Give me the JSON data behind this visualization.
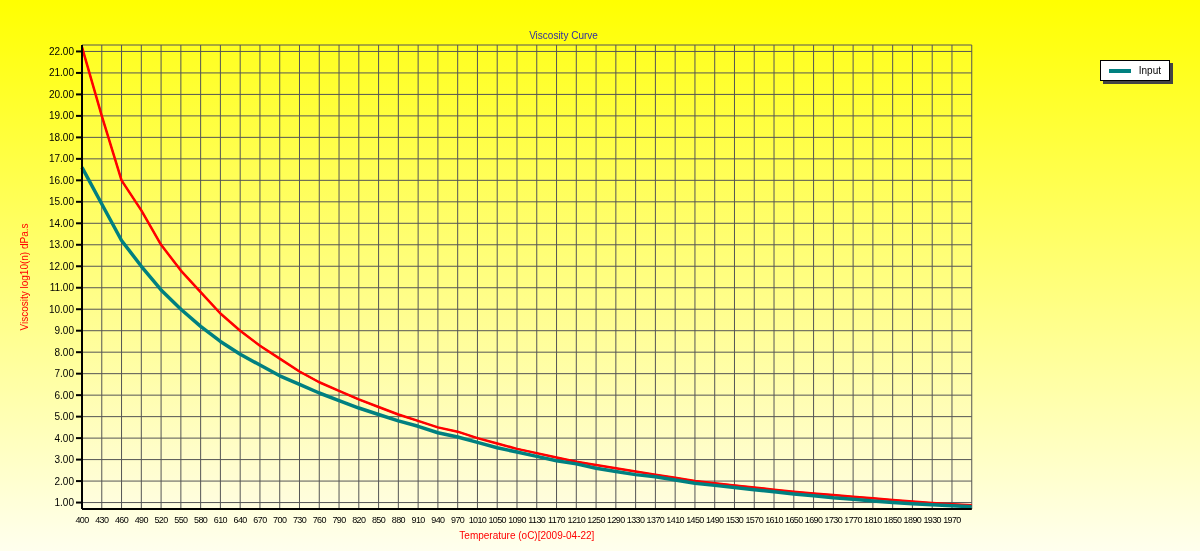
{
  "chart_data": {
    "type": "line",
    "title": "Viscosity Curve",
    "xlabel": "Temperature (oC)[2009-04-22]",
    "ylabel": "Viscosity log10(n) dPa.s",
    "categories": [
      "400",
      "430",
      "460",
      "490",
      "520",
      "550",
      "580",
      "610",
      "640",
      "670",
      "700",
      "730",
      "760",
      "790",
      "820",
      "850",
      "880",
      "910",
      "940",
      "970",
      "1010",
      "1050",
      "1090",
      "1130",
      "1170",
      "1210",
      "1250",
      "1290",
      "1330",
      "1370",
      "1410",
      "1450",
      "1490",
      "1530",
      "1570",
      "1610",
      "1650",
      "1690",
      "1730",
      "1770",
      "1810",
      "1850",
      "1890",
      "1930",
      "1970",
      null
    ],
    "ylim": [
      0.7,
      22.3
    ],
    "yticks": [
      {
        "value": 1,
        "label": "1.00"
      },
      {
        "value": 2,
        "label": "2.00"
      },
      {
        "value": 3,
        "label": "3.00"
      },
      {
        "value": 4,
        "label": "4.00"
      },
      {
        "value": 5,
        "label": "5.00"
      },
      {
        "value": 6,
        "label": "6.00"
      },
      {
        "value": 7,
        "label": "7.00"
      },
      {
        "value": 8,
        "label": "8.00"
      },
      {
        "value": 9,
        "label": "9.00"
      },
      {
        "value": 10,
        "label": "10.00"
      },
      {
        "value": 11,
        "label": "11.00"
      },
      {
        "value": 12,
        "label": "12.00"
      },
      {
        "value": 13,
        "label": "13.00"
      },
      {
        "value": 14,
        "label": "14.00"
      },
      {
        "value": 15,
        "label": "15.00"
      },
      {
        "value": 16,
        "label": "16.00"
      },
      {
        "value": 17,
        "label": "17.00"
      },
      {
        "value": 18,
        "label": "18.00"
      },
      {
        "value": 19,
        "label": "19.00"
      },
      {
        "value": 20,
        "label": "20.00"
      },
      {
        "value": 21,
        "label": "21.00"
      },
      {
        "value": 22,
        "label": "22.00"
      }
    ],
    "grid": true,
    "legend": "top right",
    "marker": "none",
    "series": [
      {
        "color": "#ff0000",
        "values": [
          22.2,
          19.0,
          16.0,
          14.6,
          13.0,
          11.8,
          10.8,
          9.8,
          9.0,
          8.3,
          7.7,
          7.1,
          6.6,
          6.2,
          5.8,
          5.45,
          5.1,
          4.8,
          4.5,
          4.3,
          4.0,
          3.75,
          3.5,
          3.3,
          3.1,
          2.9,
          2.75,
          2.6,
          2.45,
          2.3,
          2.15,
          2.0,
          1.9,
          1.8,
          1.7,
          1.6,
          1.5,
          1.42,
          1.35,
          1.27,
          1.2,
          1.12,
          1.05,
          0.98,
          0.92,
          0.88
        ]
      },
      {
        "color": "#ff0000",
        "values": [
          22.2,
          19.0,
          16.0,
          14.6,
          13.0,
          11.8,
          10.8,
          9.8,
          9.0,
          8.3,
          7.7,
          7.1,
          6.6,
          6.2,
          5.8,
          5.45,
          5.1,
          4.8,
          4.5,
          4.3,
          4.0,
          3.75,
          3.5,
          3.3,
          3.1,
          2.9,
          2.75,
          2.6,
          2.45,
          2.3,
          2.15,
          2.0,
          1.9,
          1.8,
          1.7,
          1.6,
          1.5,
          1.42,
          1.35,
          1.27,
          1.2,
          1.12,
          1.05,
          0.98,
          0.92,
          0.88
        ]
      },
      {
        "name": "Input",
        "color": "#008080",
        "values": [
          16.6,
          14.9,
          13.2,
          12.0,
          10.9,
          10.0,
          9.2,
          8.5,
          7.9,
          7.4,
          6.9,
          6.5,
          6.1,
          5.75,
          5.4,
          5.1,
          4.8,
          4.55,
          4.25,
          4.05,
          3.8,
          3.55,
          3.35,
          3.15,
          2.95,
          2.8,
          2.6,
          2.45,
          2.3,
          2.2,
          2.05,
          1.9,
          1.8,
          1.7,
          1.6,
          1.5,
          1.4,
          1.32,
          1.22,
          1.15,
          1.07,
          1.0,
          0.95,
          0.9,
          0.85,
          0.8
        ]
      }
    ]
  }
}
